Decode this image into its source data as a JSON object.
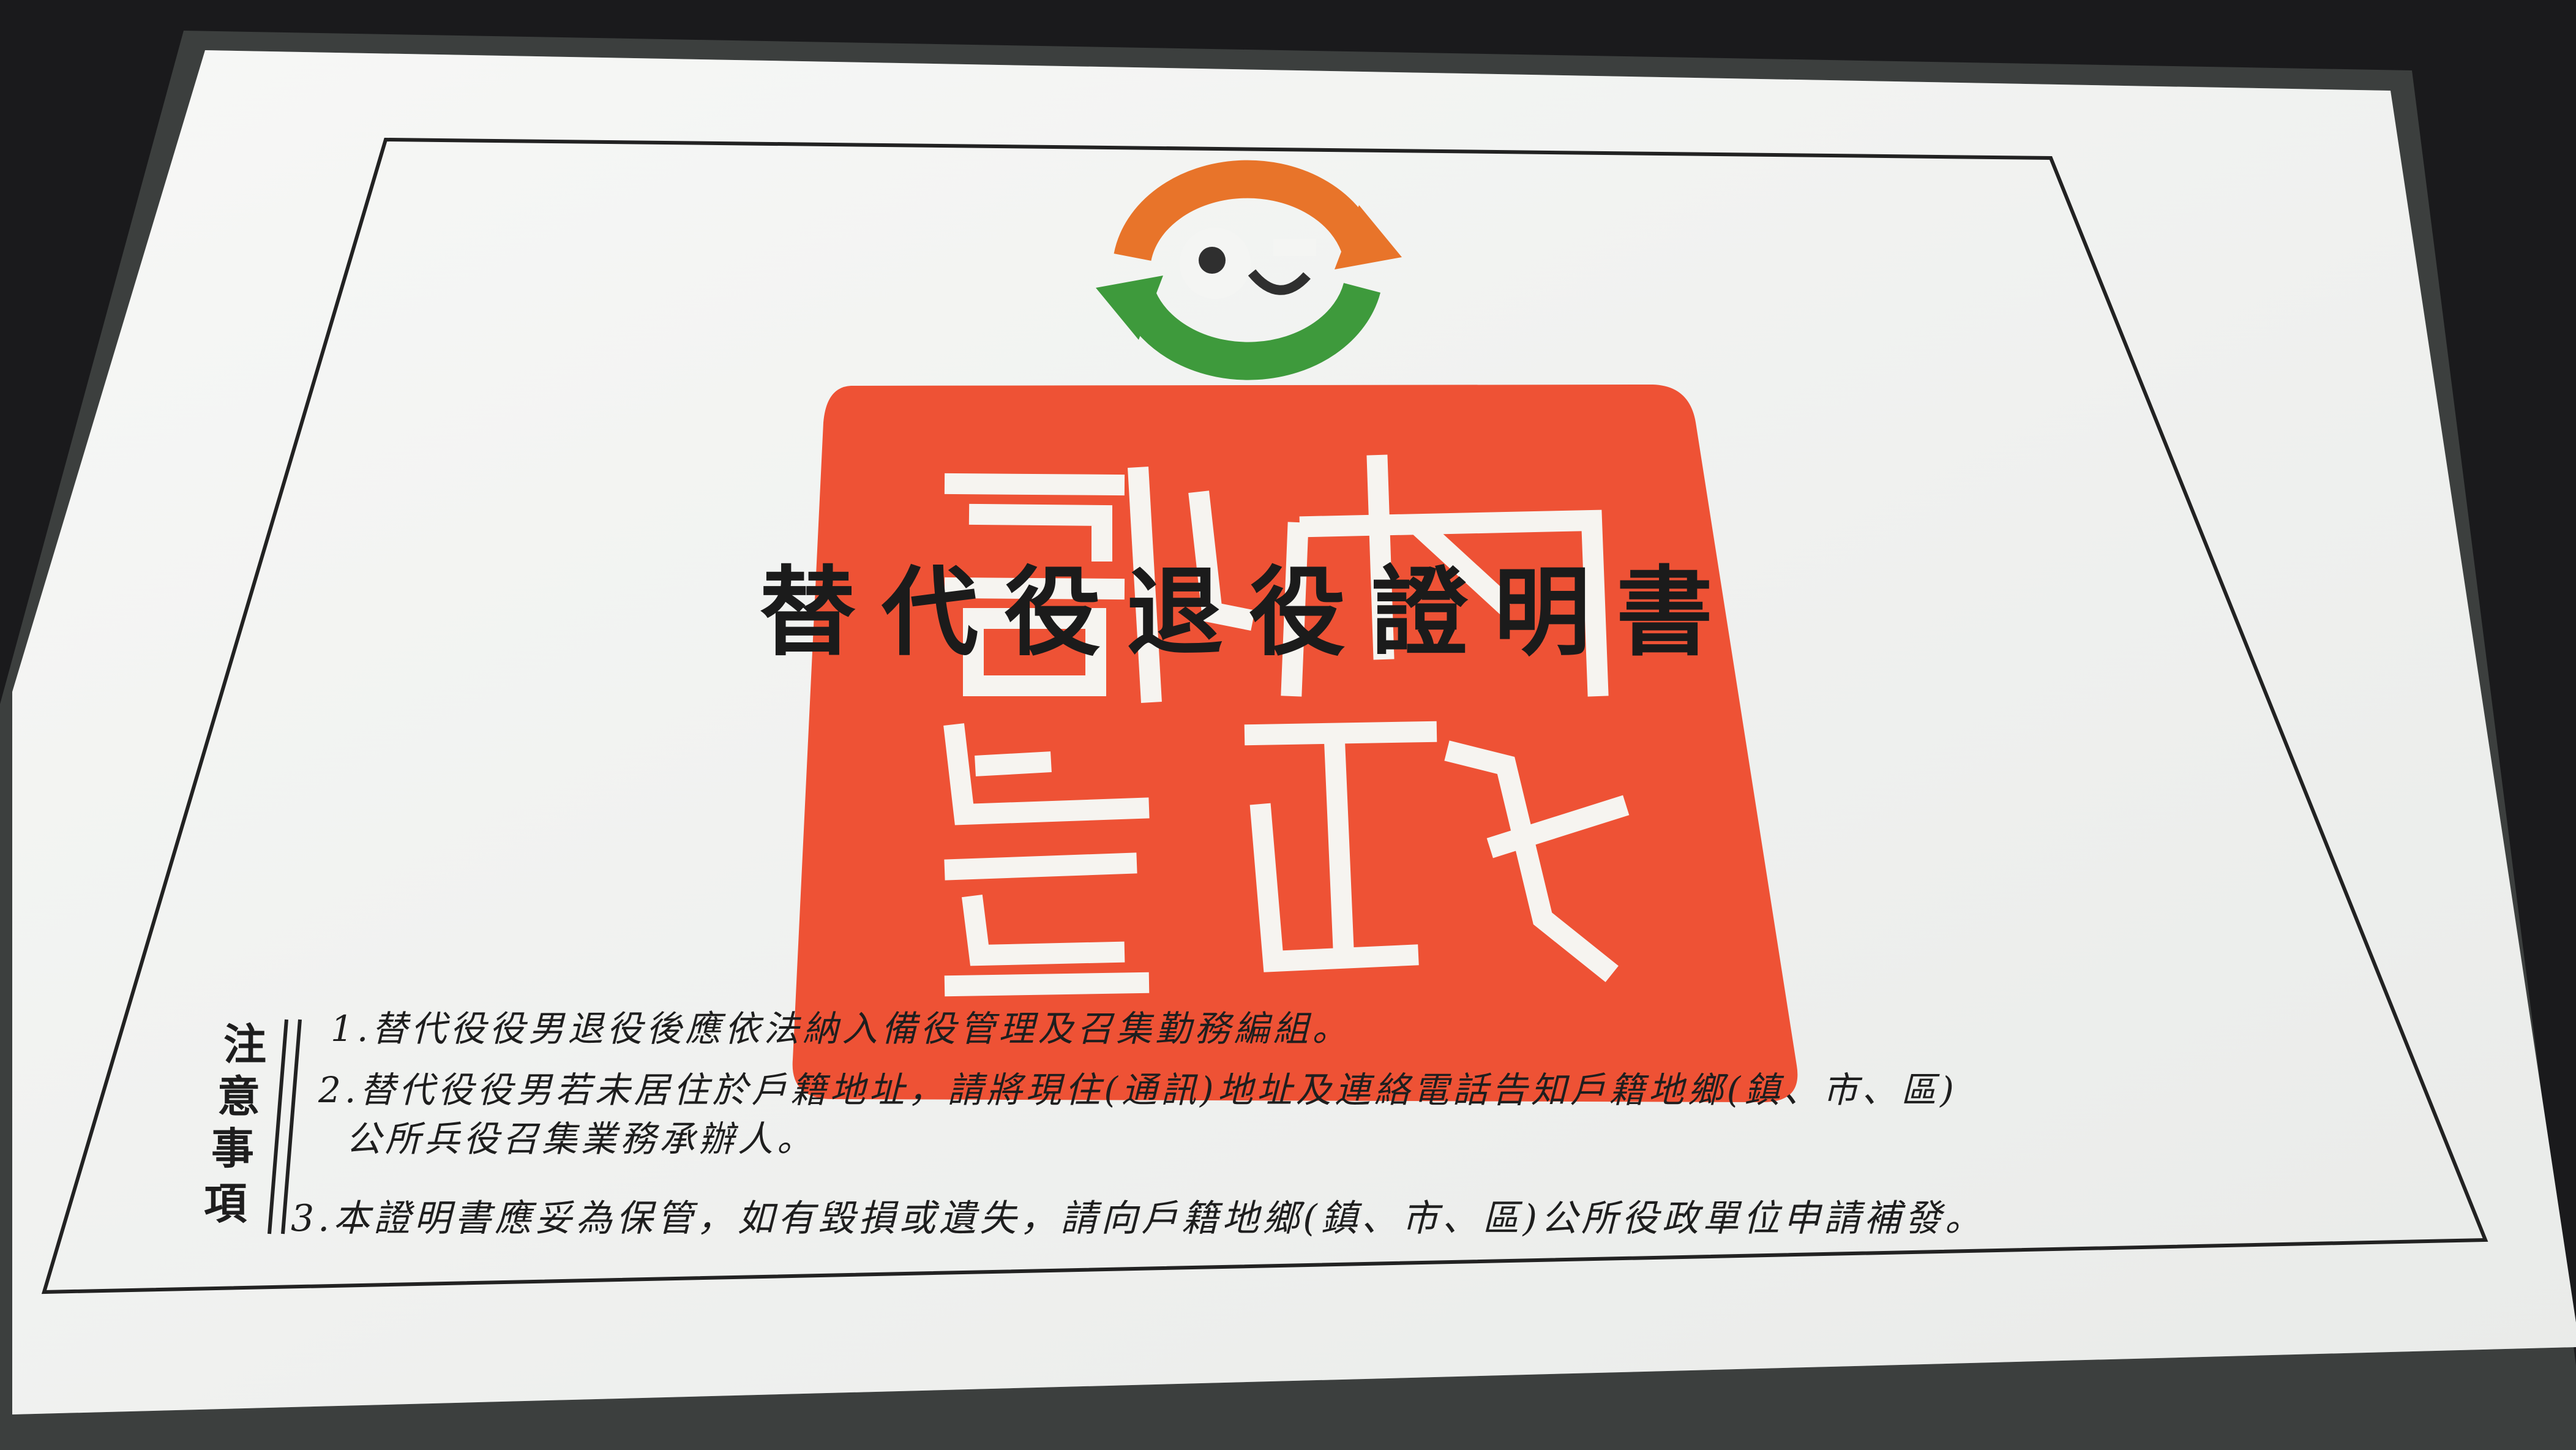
{
  "certificate": {
    "title": "替代役退役證明書",
    "notes_label_chars": [
      "注",
      "意",
      "事",
      "項"
    ],
    "notes": [
      "1.替代役役男退役後應依法納入備役管理及召集勤務編組。",
      "2.替代役役男若未居住於戶籍地址，請將現住(通訊)地址及連絡電話告知戶籍地鄉(鎮、市、區)",
      "公所兵役召集業務承辦人。",
      "3.本證明書應妥為保管，如有毀損或遺失，請向戶籍地鄉(鎮、市、區)公所役政單位申請補發。"
    ],
    "seal_chars": [
      "內",
      "政",
      "部",
      "印"
    ]
  },
  "colors": {
    "background": "#1a1a1c",
    "sleeve": "#3c3f3e",
    "card": "#f4f5f3",
    "border": "#222222",
    "seal_red": "#ee5235",
    "logo_orange": "#e8742a",
    "logo_green": "#3e9a3c",
    "text": "#1b1b1b"
  },
  "icons": {
    "logo": "alternative-service-logo-icon",
    "seal": "ministry-seal-stamp"
  }
}
